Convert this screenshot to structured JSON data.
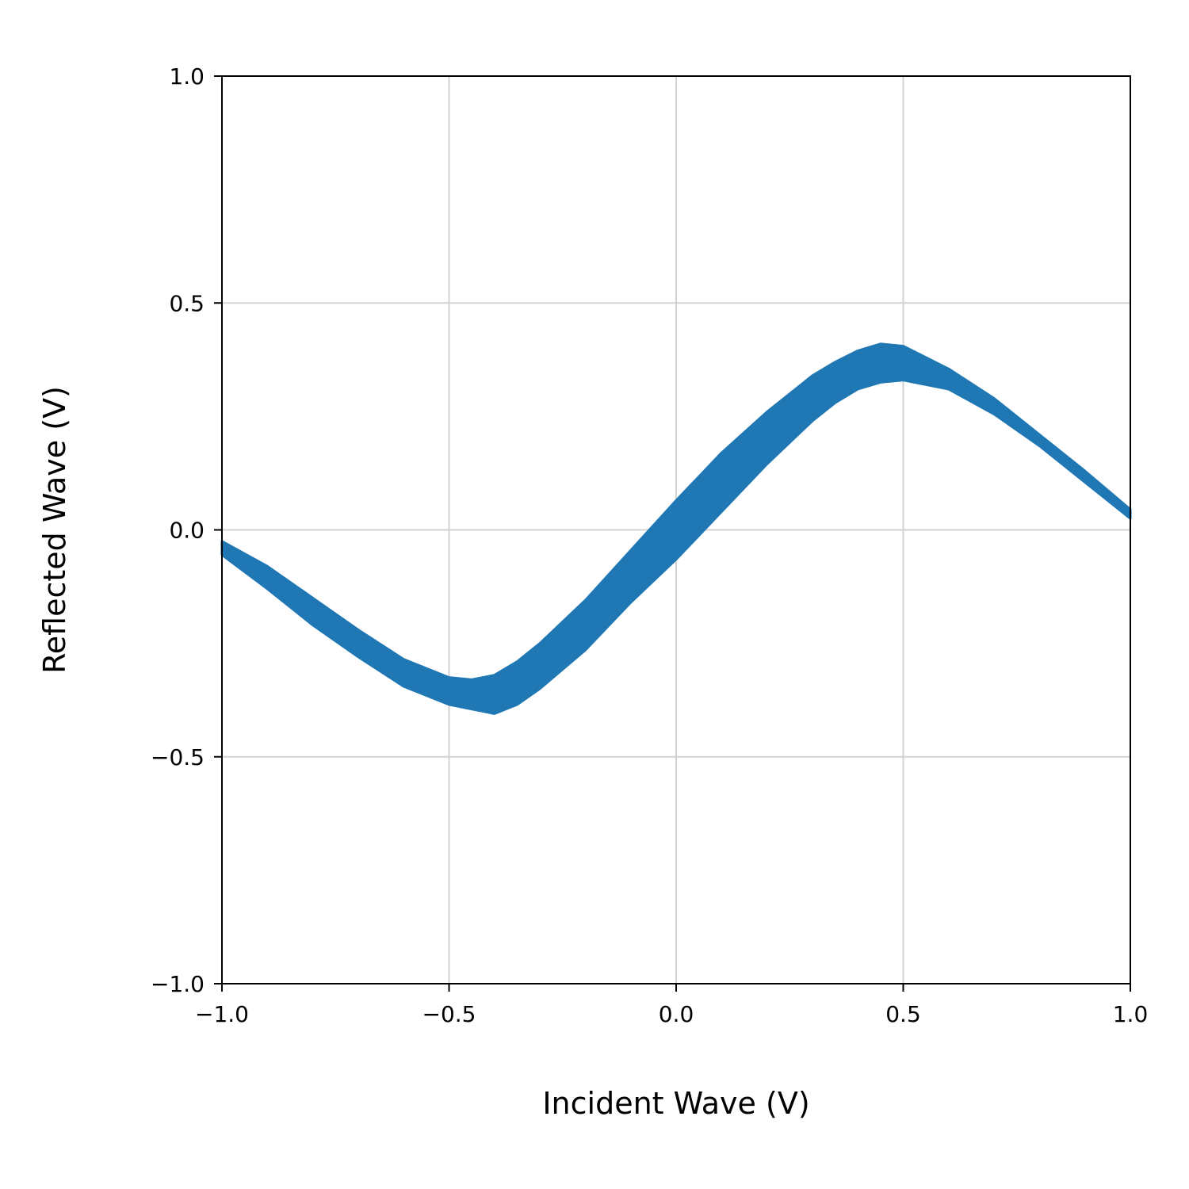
{
  "chart_data": {
    "type": "area",
    "title": "",
    "xlabel": "Incident Wave (V)",
    "ylabel": "Reflected Wave (V)",
    "xlim": [
      -1.0,
      1.0
    ],
    "ylim": [
      -1.0,
      1.0
    ],
    "xticks": [
      -1.0,
      -0.5,
      0.0,
      0.5,
      1.0
    ],
    "yticks": [
      -1.0,
      -0.5,
      0.0,
      0.5,
      1.0
    ],
    "xtick_labels": [
      "−1.0",
      "−0.5",
      "0.0",
      "0.5",
      "1.0"
    ],
    "ytick_labels": [
      "−1.0",
      "−0.5",
      "0.0",
      "0.5",
      "1.0"
    ],
    "grid": true,
    "legend": "none",
    "series_color": "#1f77b4",
    "grid_color": "#d3d3d3",
    "series": [
      {
        "x": [
          -1.0,
          -0.9,
          -0.8,
          -0.7,
          -0.6,
          -0.5,
          -0.45,
          -0.4,
          -0.35,
          -0.3,
          -0.2,
          -0.1,
          0.0,
          0.1,
          0.2,
          0.3,
          0.35,
          0.4,
          0.45,
          0.5,
          0.6,
          0.7,
          0.8,
          0.9,
          1.0
        ],
        "y_upper": [
          -0.025,
          -0.08,
          -0.15,
          -0.22,
          -0.285,
          -0.325,
          -0.33,
          -0.32,
          -0.29,
          -0.25,
          -0.155,
          -0.045,
          0.065,
          0.17,
          0.26,
          0.34,
          0.37,
          0.395,
          0.41,
          0.405,
          0.355,
          0.29,
          0.21,
          0.13,
          0.045
        ],
        "y_lower": [
          -0.055,
          -0.13,
          -0.21,
          -0.28,
          -0.345,
          -0.385,
          -0.395,
          -0.405,
          -0.385,
          -0.35,
          -0.265,
          -0.16,
          -0.065,
          0.04,
          0.145,
          0.24,
          0.28,
          0.31,
          0.325,
          0.33,
          0.31,
          0.255,
          0.185,
          0.105,
          0.025
        ]
      }
    ]
  }
}
